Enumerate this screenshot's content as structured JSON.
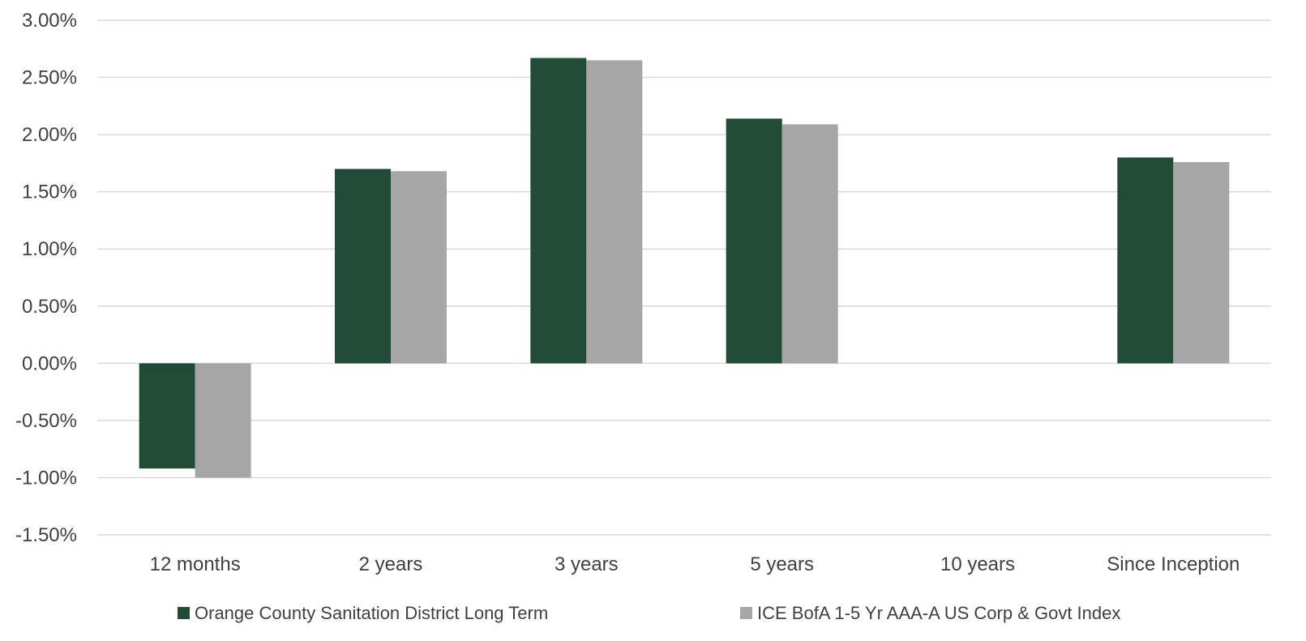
{
  "chart_data": {
    "type": "bar",
    "categories": [
      "12 months",
      "2 years",
      "3 years",
      "5 years",
      "10 years",
      "Since Inception"
    ],
    "series": [
      {
        "name": "Orange County Sanitation District Long Term",
        "color": "#214a37",
        "values": [
          -0.92,
          1.7,
          2.67,
          2.14,
          null,
          1.8
        ]
      },
      {
        "name": "ICE BofA 1-5 Yr AAA-A US Corp & Govt Index",
        "color": "#a6a6a6",
        "values": [
          -1.0,
          1.68,
          2.65,
          2.09,
          null,
          1.76
        ]
      }
    ],
    "ylim": [
      -1.5,
      3.0
    ],
    "yticks": [
      3.0,
      2.5,
      2.0,
      1.5,
      1.0,
      0.5,
      0.0,
      -0.5,
      -1.0,
      -1.5
    ],
    "ytick_labels": [
      "3.00%",
      "2.50%",
      "2.00%",
      "1.50%",
      "1.00%",
      "0.50%",
      "0.00%",
      "-0.50%",
      "-1.00%",
      "-1.50%"
    ],
    "grid": true,
    "legend_position": "bottom",
    "title": "",
    "xlabel": "",
    "ylabel": ""
  }
}
